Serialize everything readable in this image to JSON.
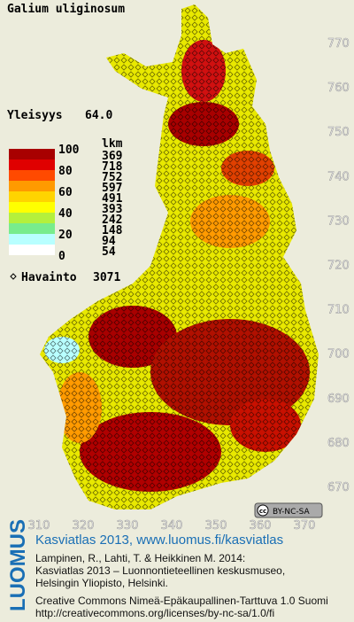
{
  "title": "Galium uliginosum",
  "frequency": {
    "label": "Yleisyys",
    "value": "64.0"
  },
  "legend": {
    "scale": [
      100,
      80,
      60,
      40,
      20,
      0
    ],
    "count_heading": "lkm",
    "counts": [
      369,
      718,
      752,
      597,
      491,
      393,
      242,
      148,
      94,
      54
    ],
    "colors": [
      "#a80000",
      "#e00000",
      "#ff4a00",
      "#ff9a00",
      "#ffd400",
      "#ffff00",
      "#b4f03c",
      "#78ec8c",
      "#b8ffff",
      "#ffffff"
    ]
  },
  "observations": {
    "label": "Havainto",
    "value": 3071
  },
  "map": {
    "y_ticks": [
      770,
      760,
      750,
      740,
      730,
      720,
      710,
      700,
      690,
      680,
      670
    ],
    "x_ticks": [
      310,
      320,
      330,
      340,
      350,
      360,
      370
    ],
    "license_badge": "BY-NC-SA"
  },
  "footer": {
    "brand": "LUOMUS",
    "heading": "Kasviatlas 2013, www.luomus.fi/kasviatlas",
    "citation": [
      "Lampinen, R., Lahti, T. & Heikkinen M. 2014:",
      "Kasviatlas 2013 – Luonnontieteellinen keskusmuseo,",
      "Helsingin Yliopisto, Helsinki."
    ],
    "license": [
      "Creative Commons Nimeä-Epäkaupallinen-Tarttuva 1.0 Suomi",
      "http://creativecommons.org/licenses/by-nc-sa/1.0/fi"
    ]
  }
}
